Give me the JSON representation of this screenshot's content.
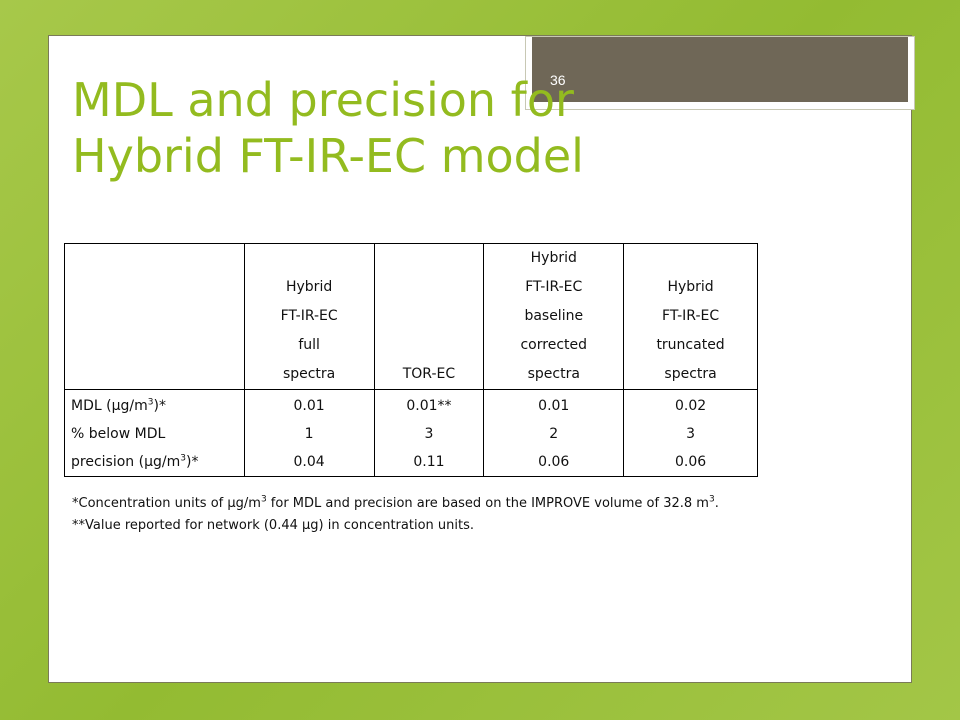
{
  "slide": {
    "page_number": "36",
    "title_line1": "MDL and precision for",
    "title_line2": "Hybrid FT-IR-EC model"
  },
  "table": {
    "header": [
      [],
      [
        "Hybrid",
        "FT-IR-EC",
        "full",
        "spectra"
      ],
      [
        "TOR-EC"
      ],
      [
        "Hybrid",
        "FT-IR-EC",
        "baseline",
        "corrected",
        "spectra"
      ],
      [
        "Hybrid",
        "FT-IR-EC",
        "truncated",
        "spectra"
      ]
    ],
    "row_labels": {
      "mdl_prefix": "MDL (",
      "mu": "μ",
      "mdl_unit": "g/m",
      "sup3": "3",
      "mdl_suffix": ")*",
      "below": "% below MDL",
      "precision_prefix": "precision (",
      "precision_suffix": ")*"
    },
    "columns": [
      {
        "mdl": "0.01",
        "below": "1",
        "precision": "0.04"
      },
      {
        "mdl": "0.01**",
        "below": "3",
        "precision": "0.11"
      },
      {
        "mdl": "0.01",
        "below": "2",
        "precision": "0.06"
      },
      {
        "mdl": "0.02",
        "below": "3",
        "precision": "0.06"
      }
    ]
  },
  "footnotes": {
    "line1_a": "*Concentration units of ",
    "mu": "μ",
    "line1_b": "g/m",
    "sup3": "3",
    "line1_c": " for MDL and precision are based on the IMPROVE volume of 32.8 m",
    "line1_d": ".",
    "line2_a": "**Value reported for network (0.44 ",
    "line2_b": "g) in concentration units."
  }
}
